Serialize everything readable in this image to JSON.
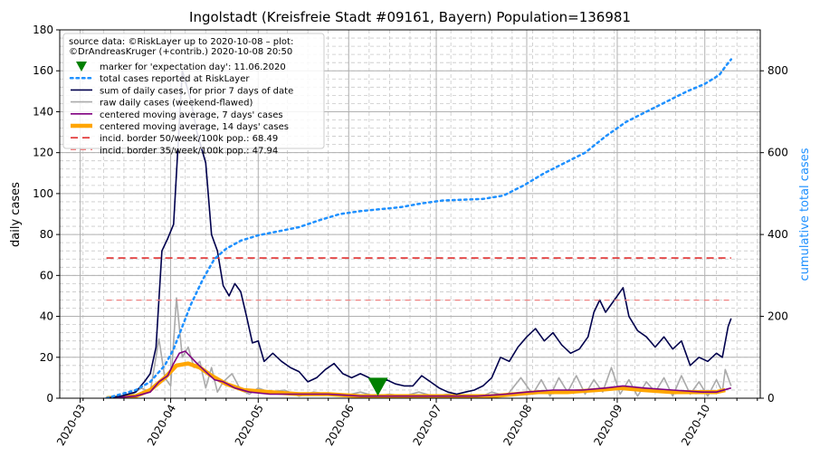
{
  "chart_data": {
    "type": "line",
    "title": "Ingolstadt (Kreisfreie Stadt #09161, Bayern) Population=136981",
    "ylabel": "daily cases",
    "y2label": "cumulative total cases",
    "ylim": [
      0,
      180
    ],
    "y2lim": [
      0,
      900
    ],
    "xlim": [
      "2020-02-23",
      "2020-10-20"
    ],
    "yticks": [
      0,
      20,
      40,
      60,
      80,
      100,
      120,
      140,
      160,
      180
    ],
    "y2ticks": [
      0,
      200,
      400,
      600,
      800
    ],
    "xticks": [
      "2020-03",
      "2020-04",
      "2020-05",
      "2020-06",
      "2020-07",
      "2020-08",
      "2020-09",
      "2020-10"
    ],
    "grid": true,
    "legend_position": "top-left",
    "legend_header": [
      "source data: ©RiskLayer up to 2020-10-08 – plot:",
      "©DrAndreasKruger (+contrib.) 2020-10-08 20:50"
    ],
    "expectation_marker": {
      "label": "marker for 'expectation day': 11.06.2020",
      "date": "2020-06-11",
      "value": 6,
      "color": "#008000"
    },
    "series": [
      {
        "name": "total cases reported at RiskLayer",
        "axis": "right",
        "color": "#1e90ff",
        "style": "dotted",
        "points": [
          [
            "2020-03-10",
            0
          ],
          [
            "2020-03-20",
            20
          ],
          [
            "2020-03-25",
            40
          ],
          [
            "2020-03-30",
            80
          ],
          [
            "2020-04-02",
            120
          ],
          [
            "2020-04-05",
            175
          ],
          [
            "2020-04-08",
            230
          ],
          [
            "2020-04-12",
            290
          ],
          [
            "2020-04-16",
            340
          ],
          [
            "2020-04-20",
            365
          ],
          [
            "2020-04-25",
            385
          ],
          [
            "2020-05-01",
            398
          ],
          [
            "2020-05-08",
            408
          ],
          [
            "2020-05-15",
            418
          ],
          [
            "2020-05-22",
            435
          ],
          [
            "2020-05-29",
            450
          ],
          [
            "2020-06-05",
            457
          ],
          [
            "2020-06-12",
            462
          ],
          [
            "2020-06-19",
            467
          ],
          [
            "2020-06-26",
            476
          ],
          [
            "2020-07-03",
            483
          ],
          [
            "2020-07-10",
            485
          ],
          [
            "2020-07-17",
            487
          ],
          [
            "2020-07-24",
            495
          ],
          [
            "2020-07-31",
            520
          ],
          [
            "2020-08-07",
            550
          ],
          [
            "2020-08-14",
            575
          ],
          [
            "2020-08-21",
            600
          ],
          [
            "2020-08-28",
            640
          ],
          [
            "2020-09-04",
            675
          ],
          [
            "2020-09-11",
            700
          ],
          [
            "2020-09-18",
            725
          ],
          [
            "2020-09-25",
            750
          ],
          [
            "2020-10-01",
            768
          ],
          [
            "2020-10-06",
            790
          ],
          [
            "2020-10-08",
            810
          ],
          [
            "2020-10-10",
            828
          ]
        ]
      },
      {
        "name": "sum of daily cases, for prior 7 days of date",
        "axis": "left",
        "color": "#00004d",
        "style": "solid",
        "points": [
          [
            "2020-03-10",
            0
          ],
          [
            "2020-03-15",
            1
          ],
          [
            "2020-03-20",
            3
          ],
          [
            "2020-03-23",
            8
          ],
          [
            "2020-03-25",
            12
          ],
          [
            "2020-03-27",
            25
          ],
          [
            "2020-03-29",
            72
          ],
          [
            "2020-03-31",
            78
          ],
          [
            "2020-04-02",
            85
          ],
          [
            "2020-04-03",
            110
          ],
          [
            "2020-04-05",
            160
          ],
          [
            "2020-04-06",
            155
          ],
          [
            "2020-04-08",
            145
          ],
          [
            "2020-04-10",
            130
          ],
          [
            "2020-04-13",
            115
          ],
          [
            "2020-04-15",
            80
          ],
          [
            "2020-04-17",
            72
          ],
          [
            "2020-04-19",
            55
          ],
          [
            "2020-04-21",
            50
          ],
          [
            "2020-04-23",
            56
          ],
          [
            "2020-04-25",
            52
          ],
          [
            "2020-04-27",
            40
          ],
          [
            "2020-04-29",
            27
          ],
          [
            "2020-05-01",
            28
          ],
          [
            "2020-05-03",
            18
          ],
          [
            "2020-05-06",
            22
          ],
          [
            "2020-05-09",
            18
          ],
          [
            "2020-05-12",
            15
          ],
          [
            "2020-05-15",
            13
          ],
          [
            "2020-05-18",
            8
          ],
          [
            "2020-05-21",
            10
          ],
          [
            "2020-05-24",
            14
          ],
          [
            "2020-05-27",
            17
          ],
          [
            "2020-05-30",
            12
          ],
          [
            "2020-06-02",
            10
          ],
          [
            "2020-06-05",
            12
          ],
          [
            "2020-06-08",
            10
          ],
          [
            "2020-06-11",
            7
          ],
          [
            "2020-06-14",
            9
          ],
          [
            "2020-06-17",
            7
          ],
          [
            "2020-06-20",
            6
          ],
          [
            "2020-06-23",
            6
          ],
          [
            "2020-06-26",
            11
          ],
          [
            "2020-06-29",
            8
          ],
          [
            "2020-07-02",
            5
          ],
          [
            "2020-07-05",
            3
          ],
          [
            "2020-07-08",
            2
          ],
          [
            "2020-07-11",
            3
          ],
          [
            "2020-07-14",
            4
          ],
          [
            "2020-07-17",
            6
          ],
          [
            "2020-07-20",
            10
          ],
          [
            "2020-07-23",
            20
          ],
          [
            "2020-07-26",
            18
          ],
          [
            "2020-07-29",
            25
          ],
          [
            "2020-08-01",
            30
          ],
          [
            "2020-08-04",
            34
          ],
          [
            "2020-08-07",
            28
          ],
          [
            "2020-08-10",
            32
          ],
          [
            "2020-08-13",
            26
          ],
          [
            "2020-08-16",
            22
          ],
          [
            "2020-08-19",
            24
          ],
          [
            "2020-08-22",
            30
          ],
          [
            "2020-08-24",
            42
          ],
          [
            "2020-08-26",
            48
          ],
          [
            "2020-08-28",
            42
          ],
          [
            "2020-08-31",
            48
          ],
          [
            "2020-09-03",
            54
          ],
          [
            "2020-09-05",
            40
          ],
          [
            "2020-09-08",
            33
          ],
          [
            "2020-09-11",
            30
          ],
          [
            "2020-09-14",
            25
          ],
          [
            "2020-09-17",
            30
          ],
          [
            "2020-09-20",
            24
          ],
          [
            "2020-09-23",
            28
          ],
          [
            "2020-09-26",
            16
          ],
          [
            "2020-09-29",
            20
          ],
          [
            "2020-10-02",
            18
          ],
          [
            "2020-10-05",
            22
          ],
          [
            "2020-10-07",
            20
          ],
          [
            "2020-10-09",
            35
          ],
          [
            "2020-10-10",
            39
          ]
        ]
      },
      {
        "name": "raw daily cases (weekend-flawed)",
        "axis": "left",
        "color": "#aaaaaa",
        "style": "solid",
        "points": [
          [
            "2020-03-10",
            0
          ],
          [
            "2020-03-18",
            1
          ],
          [
            "2020-03-22",
            5
          ],
          [
            "2020-03-25",
            3
          ],
          [
            "2020-03-28",
            29
          ],
          [
            "2020-03-30",
            10
          ],
          [
            "2020-04-01",
            6
          ],
          [
            "2020-04-03",
            49
          ],
          [
            "2020-04-05",
            20
          ],
          [
            "2020-04-07",
            25
          ],
          [
            "2020-04-09",
            15
          ],
          [
            "2020-04-11",
            18
          ],
          [
            "2020-04-13",
            5
          ],
          [
            "2020-04-15",
            15
          ],
          [
            "2020-04-17",
            3
          ],
          [
            "2020-04-19",
            8
          ],
          [
            "2020-04-22",
            12
          ],
          [
            "2020-04-25",
            4
          ],
          [
            "2020-04-28",
            2
          ],
          [
            "2020-05-01",
            5
          ],
          [
            "2020-05-05",
            3
          ],
          [
            "2020-05-10",
            4
          ],
          [
            "2020-05-15",
            1
          ],
          [
            "2020-05-20",
            3
          ],
          [
            "2020-05-25",
            2
          ],
          [
            "2020-05-30",
            1
          ],
          [
            "2020-06-05",
            3
          ],
          [
            "2020-06-10",
            1
          ],
          [
            "2020-06-15",
            2
          ],
          [
            "2020-06-20",
            1
          ],
          [
            "2020-06-25",
            3
          ],
          [
            "2020-06-30",
            1
          ],
          [
            "2020-07-05",
            2
          ],
          [
            "2020-07-10",
            1
          ],
          [
            "2020-07-15",
            0
          ],
          [
            "2020-07-20",
            3
          ],
          [
            "2020-07-25",
            1
          ],
          [
            "2020-07-30",
            10
          ],
          [
            "2020-08-03",
            2
          ],
          [
            "2020-08-06",
            9
          ],
          [
            "2020-08-09",
            1
          ],
          [
            "2020-08-12",
            10
          ],
          [
            "2020-08-15",
            3
          ],
          [
            "2020-08-18",
            11
          ],
          [
            "2020-08-21",
            2
          ],
          [
            "2020-08-24",
            9
          ],
          [
            "2020-08-27",
            3
          ],
          [
            "2020-08-30",
            15
          ],
          [
            "2020-09-02",
            2
          ],
          [
            "2020-09-05",
            9
          ],
          [
            "2020-09-08",
            1
          ],
          [
            "2020-09-11",
            8
          ],
          [
            "2020-09-14",
            3
          ],
          [
            "2020-09-17",
            10
          ],
          [
            "2020-09-20",
            1
          ],
          [
            "2020-09-23",
            11
          ],
          [
            "2020-09-26",
            2
          ],
          [
            "2020-09-29",
            8
          ],
          [
            "2020-10-02",
            1
          ],
          [
            "2020-10-05",
            9
          ],
          [
            "2020-10-07",
            3
          ],
          [
            "2020-10-08",
            14
          ],
          [
            "2020-10-10",
            6
          ]
        ]
      },
      {
        "name": "centered moving average, 7 days' cases",
        "axis": "left",
        "color": "#800080",
        "style": "solid",
        "points": [
          [
            "2020-03-10",
            0
          ],
          [
            "2020-03-20",
            1
          ],
          [
            "2020-03-25",
            3
          ],
          [
            "2020-03-28",
            8
          ],
          [
            "2020-03-31",
            11
          ],
          [
            "2020-04-02",
            17
          ],
          [
            "2020-04-04",
            22
          ],
          [
            "2020-04-06",
            23
          ],
          [
            "2020-04-08",
            20
          ],
          [
            "2020-04-10",
            17
          ],
          [
            "2020-04-13",
            13
          ],
          [
            "2020-04-16",
            9
          ],
          [
            "2020-04-19",
            8
          ],
          [
            "2020-04-23",
            5
          ],
          [
            "2020-04-28",
            3
          ],
          [
            "2020-05-05",
            2
          ],
          [
            "2020-05-15",
            2
          ],
          [
            "2020-05-25",
            2
          ],
          [
            "2020-06-05",
            1
          ],
          [
            "2020-06-20",
            1
          ],
          [
            "2020-07-05",
            1
          ],
          [
            "2020-07-15",
            1
          ],
          [
            "2020-07-25",
            2
          ],
          [
            "2020-08-01",
            3
          ],
          [
            "2020-08-10",
            4
          ],
          [
            "2020-08-20",
            4
          ],
          [
            "2020-08-28",
            5
          ],
          [
            "2020-09-03",
            6
          ],
          [
            "2020-09-10",
            5
          ],
          [
            "2020-09-20",
            4
          ],
          [
            "2020-09-30",
            3
          ],
          [
            "2020-10-05",
            3
          ],
          [
            "2020-10-10",
            5
          ]
        ]
      },
      {
        "name": "centered moving average, 14 days' cases",
        "axis": "left",
        "color": "#ffa500",
        "style": "thick",
        "points": [
          [
            "2020-03-10",
            0
          ],
          [
            "2020-03-20",
            1
          ],
          [
            "2020-03-25",
            4
          ],
          [
            "2020-03-30",
            10
          ],
          [
            "2020-04-03",
            16
          ],
          [
            "2020-04-07",
            17
          ],
          [
            "2020-04-11",
            15
          ],
          [
            "2020-04-15",
            11
          ],
          [
            "2020-04-20",
            7
          ],
          [
            "2020-04-26",
            4
          ],
          [
            "2020-05-05",
            3
          ],
          [
            "2020-05-15",
            2
          ],
          [
            "2020-05-25",
            2
          ],
          [
            "2020-06-05",
            1
          ],
          [
            "2020-06-20",
            1
          ],
          [
            "2020-07-05",
            1
          ],
          [
            "2020-07-20",
            1
          ],
          [
            "2020-07-28",
            2
          ],
          [
            "2020-08-05",
            3
          ],
          [
            "2020-08-15",
            3
          ],
          [
            "2020-08-25",
            4
          ],
          [
            "2020-09-02",
            5
          ],
          [
            "2020-09-10",
            4
          ],
          [
            "2020-09-20",
            3
          ],
          [
            "2020-09-30",
            3
          ],
          [
            "2020-10-05",
            3
          ],
          [
            "2020-10-08",
            4
          ]
        ]
      },
      {
        "name": "incid. border 50/week/100k pop.: 68.49",
        "axis": "left",
        "color": "#e03030",
        "style": "dashed",
        "points": [
          [
            "2020-03-10",
            68.49
          ],
          [
            "2020-10-10",
            68.49
          ]
        ]
      },
      {
        "name": "incid. border 35/week/100k pop.: 47.94",
        "axis": "left",
        "color": "#f08080",
        "style": "dashed-light",
        "points": [
          [
            "2020-03-10",
            47.94
          ],
          [
            "2020-10-10",
            47.94
          ]
        ]
      }
    ]
  }
}
